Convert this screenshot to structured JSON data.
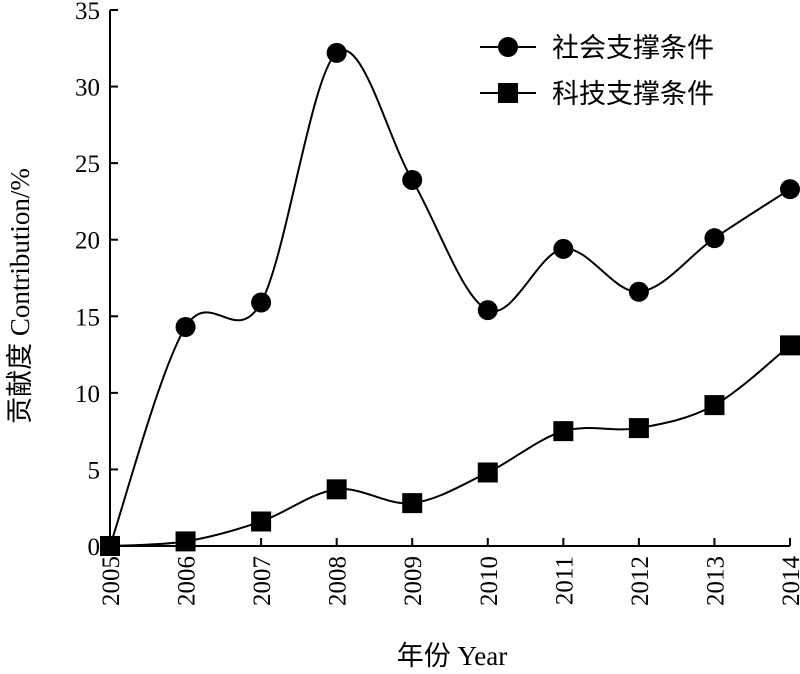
{
  "chart_data": {
    "type": "line",
    "xlabel": "年份 Year",
    "ylabel": "贡献度 Contribution/%",
    "ylim": [
      0,
      35
    ],
    "yticks": [
      "0",
      "5",
      "10",
      "15",
      "20",
      "25",
      "30",
      "35"
    ],
    "x": [
      "2005",
      "2006",
      "2007",
      "2008",
      "2009",
      "2010",
      "2011",
      "2012",
      "2013",
      "2014"
    ],
    "grid": false,
    "legend_position": "top-right",
    "smoothed": true,
    "series": [
      {
        "name": "社会支撑条件",
        "marker": "circle",
        "color": "#000000",
        "values": [
          0,
          14.3,
          15.9,
          32.2,
          23.9,
          15.4,
          19.4,
          16.6,
          20.1,
          23.3
        ]
      },
      {
        "name": "科技支撑条件",
        "marker": "square",
        "color": "#000000",
        "values": [
          0,
          0.3,
          1.6,
          3.7,
          2.8,
          4.8,
          7.5,
          7.7,
          9.2,
          13.1
        ]
      }
    ]
  }
}
